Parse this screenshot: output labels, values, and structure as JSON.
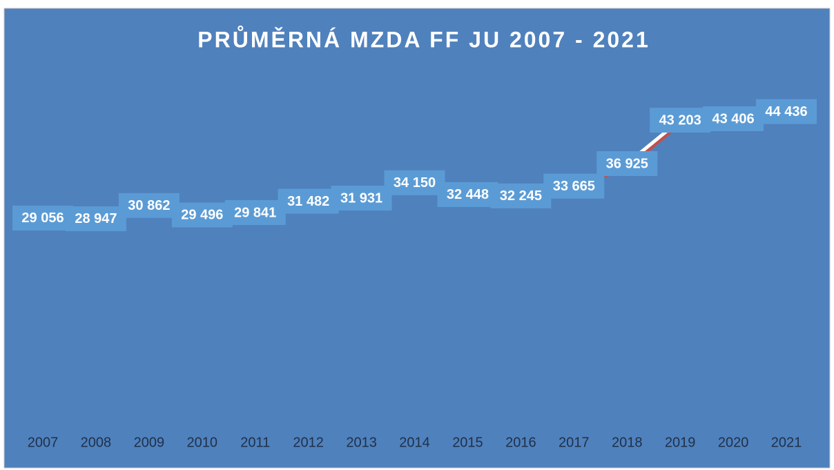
{
  "chart_data": {
    "type": "line",
    "title": "PRŮMĚRNÁ MZDA FF JU 2007 - 2021",
    "categories": [
      "2007",
      "2008",
      "2009",
      "2010",
      "2011",
      "2012",
      "2013",
      "2014",
      "2015",
      "2016",
      "2017",
      "2018",
      "2019",
      "2020",
      "2021"
    ],
    "series": [
      {
        "color": "#ffffff",
        "values": [
          29056,
          28947,
          30862,
          29496,
          29841,
          31482,
          31931,
          34150,
          32448,
          32245,
          33665,
          36925,
          43203,
          43406,
          44436
        ],
        "value_labels": [
          "29 056",
          "28 947",
          "30 862",
          "29 496",
          "29 841",
          "31 482",
          "31 931",
          "34 150",
          "32 448",
          "32 245",
          "33 665",
          "36 925",
          "43 203",
          "43 406",
          "44 436"
        ]
      }
    ],
    "ylim": [
      0,
      50000
    ],
    "drop_lines": true,
    "label_color": "#5b9bd5",
    "background": "#4f81bd"
  }
}
